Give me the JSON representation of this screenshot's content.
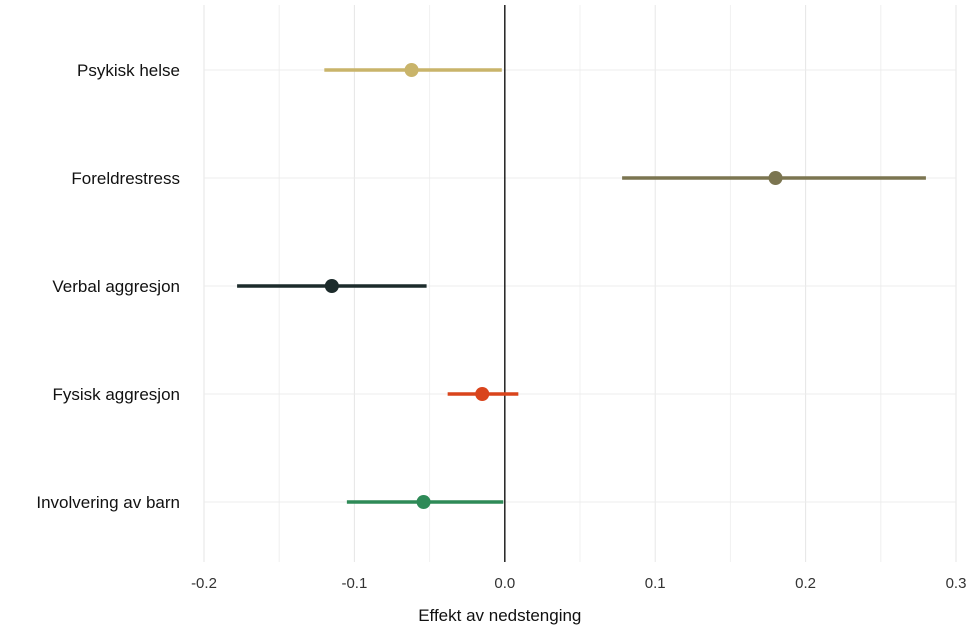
{
  "chart_data": {
    "type": "forest",
    "title": "",
    "xlabel": "Effekt av nedstenging",
    "ylabel": "",
    "xlim": [
      -0.2,
      0.3
    ],
    "xticks": [
      -0.2,
      -0.1,
      0.0,
      0.1,
      0.2,
      0.3
    ],
    "xtick_labels": [
      "-0.2",
      "-0.1",
      "0.0",
      "0.1",
      "0.2",
      "0.3"
    ],
    "grid": true,
    "reference_line": 0,
    "categories": [
      "Psykisk helse",
      "Foreldrestress",
      "Verbal aggresjon",
      "Fysisk aggresjon",
      "Involvering av barn"
    ],
    "series": [
      {
        "category": "Psykisk helse",
        "estimate": -0.062,
        "ci_low": -0.12,
        "ci_high": -0.002,
        "color": "#c9b46a"
      },
      {
        "category": "Foreldrestress",
        "estimate": 0.18,
        "ci_low": 0.078,
        "ci_high": 0.28,
        "color": "#7b7550"
      },
      {
        "category": "Verbal aggresjon",
        "estimate": -0.115,
        "ci_low": -0.178,
        "ci_high": -0.052,
        "color": "#1c2b2b"
      },
      {
        "category": "Fysisk aggresjon",
        "estimate": -0.015,
        "ci_low": -0.038,
        "ci_high": 0.009,
        "color": "#d9441c"
      },
      {
        "category": "Involvering av barn",
        "estimate": -0.054,
        "ci_low": -0.105,
        "ci_high": -0.001,
        "color": "#2e8a57"
      }
    ]
  }
}
